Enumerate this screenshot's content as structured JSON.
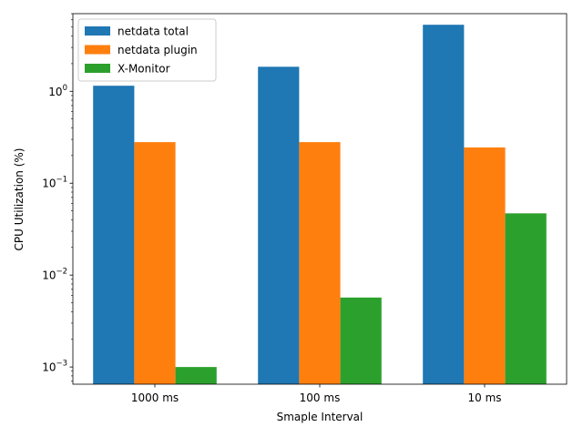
{
  "chart_data": {
    "type": "bar",
    "title": "",
    "xlabel": "Smaple Interval",
    "ylabel": "CPU Utilization (%)",
    "yscale": "log",
    "ylim": [
      0.00065,
      7
    ],
    "categories": [
      "1000 ms",
      "100 ms",
      "10 ms"
    ],
    "y_ticks": [
      {
        "value": 0.001,
        "base": "10",
        "exp": "−3"
      },
      {
        "value": 0.01,
        "base": "10",
        "exp": "−2"
      },
      {
        "value": 0.1,
        "base": "10",
        "exp": "−1"
      },
      {
        "value": 1,
        "base": "10",
        "exp": "0"
      }
    ],
    "series": [
      {
        "name": "netdata total",
        "color": "#1f77b4",
        "values": [
          1.15,
          1.85,
          5.3
        ]
      },
      {
        "name": "netdata plugin",
        "color": "#ff7f0e",
        "values": [
          0.28,
          0.28,
          0.245
        ]
      },
      {
        "name": "X-Monitor",
        "color": "#2ca02c",
        "values": [
          0.001,
          0.0057,
          0.047
        ]
      }
    ],
    "legend": {
      "position": "top-left"
    },
    "grid": false
  }
}
